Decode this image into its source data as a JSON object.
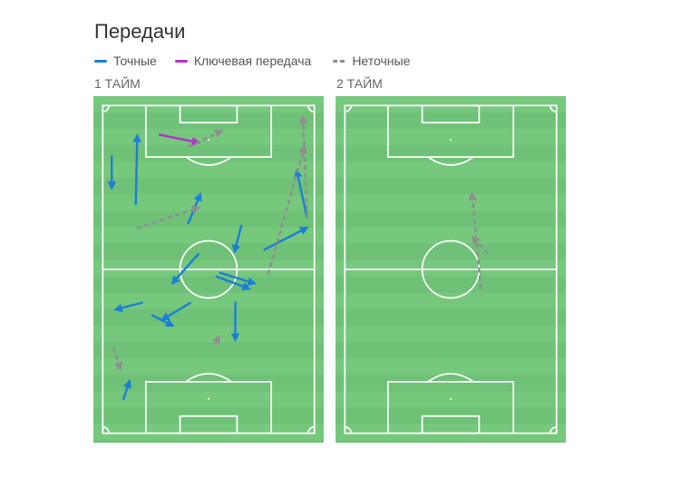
{
  "title": "Передачи",
  "legend": [
    {
      "label": "Точные",
      "color": "#1a7fd6",
      "style": "solid"
    },
    {
      "label": "Ключевая передача",
      "color": "#b52fd0",
      "style": "solid"
    },
    {
      "label": "Неточные",
      "color": "#8e8e8e",
      "style": "dashed"
    }
  ],
  "colors": {
    "pitch": "#6fc178",
    "stripe": "#7ccd80",
    "lines": "#ffffff"
  },
  "halves": [
    {
      "label": "1 ТАЙМ",
      "passes": [
        {
          "type": "accurate",
          "from": [
            2.9,
            15.9
          ],
          "to": [
            2.9,
            26.6
          ]
        },
        {
          "type": "accurate",
          "from": [
            10.6,
            31.8
          ],
          "to": [
            11.1,
            9.5
          ]
        },
        {
          "type": "accurate",
          "from": [
            27.4,
            37.9
          ],
          "to": [
            31.4,
            28.3
          ]
        },
        {
          "type": "accurate",
          "from": [
            44.6,
            38.2
          ],
          "to": [
            42.3,
            46.9
          ]
        },
        {
          "type": "accurate",
          "from": [
            51.7,
            46.3
          ],
          "to": [
            65.7,
            39.1
          ]
        },
        {
          "type": "accurate",
          "from": [
            65.7,
            36.2
          ],
          "to": [
            62.3,
            20.8
          ]
        },
        {
          "type": "accurate",
          "from": [
            30.9,
            47.4
          ],
          "to": [
            22.3,
            57.0
          ]
        },
        {
          "type": "accurate",
          "from": [
            37.4,
            53.5
          ],
          "to": [
            48.9,
            57.0
          ]
        },
        {
          "type": "accurate",
          "from": [
            36.3,
            54.7
          ],
          "to": [
            47.1,
            58.7
          ]
        },
        {
          "type": "accurate",
          "from": [
            12.9,
            63.1
          ],
          "to": [
            4.0,
            65.4
          ]
        },
        {
          "type": "accurate",
          "from": [
            28.3,
            63.1
          ],
          "to": [
            19.1,
            68.6
          ]
        },
        {
          "type": "accurate",
          "from": [
            15.7,
            67.1
          ],
          "to": [
            22.6,
            70.6
          ]
        },
        {
          "type": "accurate",
          "from": [
            42.6,
            62.8
          ],
          "to": [
            42.6,
            75.2
          ]
        },
        {
          "type": "accurate",
          "from": [
            6.6,
            94.3
          ],
          "to": [
            8.6,
            88.2
          ]
        },
        {
          "type": "key",
          "from": [
            18.0,
            9.3
          ],
          "to": [
            30.9,
            11.9
          ]
        },
        {
          "type": "inaccurate",
          "from": [
            27.4,
            13.3
          ],
          "to": [
            38.3,
            8.1
          ]
        },
        {
          "type": "inaccurate",
          "from": [
            10.9,
            39.3
          ],
          "to": [
            30.9,
            32.7
          ]
        },
        {
          "type": "inaccurate",
          "from": [
            53.1,
            54.1
          ],
          "to": [
            64.9,
            13.0
          ]
        },
        {
          "type": "inaccurate",
          "from": [
            65.7,
            36.2
          ],
          "to": [
            64.3,
            3.5
          ]
        },
        {
          "type": "inaccurate",
          "from": [
            3.4,
            77.5
          ],
          "to": [
            5.7,
            84.5
          ]
        },
        {
          "type": "inaccurate",
          "from": [
            36.0,
            76.7
          ],
          "to": [
            37.4,
            73.8
          ]
        }
      ]
    },
    {
      "label": "2 ТАЙМ",
      "passes": [
        {
          "type": "inaccurate",
          "from": [
            43.7,
            58.7
          ],
          "to": [
            40.9,
            28.1
          ]
        },
        {
          "type": "inaccurate",
          "from": [
            46.0,
            47.4
          ],
          "to": [
            40.9,
            42.2
          ]
        }
      ]
    }
  ]
}
